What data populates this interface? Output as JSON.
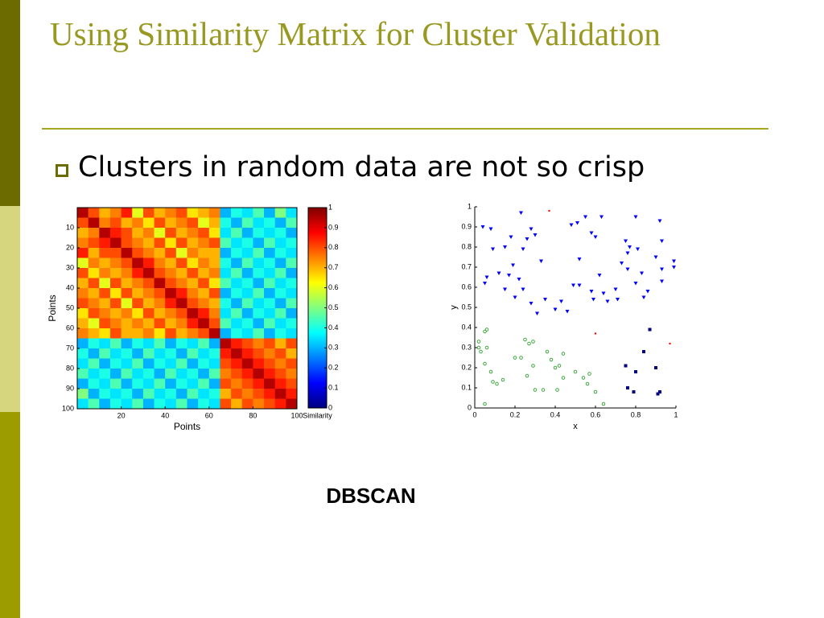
{
  "slide": {
    "title": "Using Similarity Matrix for Cluster Validation",
    "bullet": "Clusters in random data are not so crisp",
    "caption": "DBSCAN"
  },
  "chart_data": [
    {
      "type": "heatmap",
      "xlabel": "Points",
      "ylabel": "Points",
      "colormap": "jet",
      "xlim": [
        0,
        100
      ],
      "ylim": [
        100,
        0
      ],
      "xticks": [
        20,
        40,
        60,
        80,
        100
      ],
      "yticks": [
        10,
        20,
        30,
        40,
        50,
        60,
        70,
        80,
        90,
        100
      ],
      "colorbar": {
        "label": "Similarity",
        "lim": [
          0,
          1
        ],
        "ticks": [
          0,
          0.1,
          0.2,
          0.3,
          0.4,
          0.5,
          0.6,
          0.7,
          0.8,
          0.9,
          1
        ]
      },
      "z": [
        [
          0.95,
          0.8,
          0.7,
          0.75,
          0.85,
          0.6,
          0.8,
          0.7,
          0.75,
          0.8,
          0.65,
          0.7,
          0.75,
          0.3,
          0.4,
          0.35,
          0.45,
          0.3,
          0.5,
          0.35
        ],
        [
          0.8,
          0.95,
          0.75,
          0.8,
          0.7,
          0.75,
          0.65,
          0.8,
          0.7,
          0.75,
          0.8,
          0.6,
          0.7,
          0.4,
          0.3,
          0.45,
          0.35,
          0.4,
          0.3,
          0.45
        ],
        [
          0.7,
          0.75,
          0.95,
          0.85,
          0.8,
          0.7,
          0.75,
          0.6,
          0.8,
          0.7,
          0.75,
          0.8,
          0.65,
          0.35,
          0.45,
          0.3,
          0.4,
          0.35,
          0.4,
          0.3
        ],
        [
          0.75,
          0.8,
          0.85,
          0.95,
          0.8,
          0.75,
          0.7,
          0.8,
          0.65,
          0.8,
          0.7,
          0.75,
          0.8,
          0.45,
          0.35,
          0.4,
          0.3,
          0.45,
          0.35,
          0.4
        ],
        [
          0.85,
          0.7,
          0.8,
          0.8,
          0.95,
          0.8,
          0.75,
          0.7,
          0.8,
          0.6,
          0.75,
          0.7,
          0.7,
          0.3,
          0.4,
          0.35,
          0.45,
          0.3,
          0.4,
          0.35
        ],
        [
          0.6,
          0.75,
          0.7,
          0.75,
          0.8,
          0.95,
          0.85,
          0.75,
          0.7,
          0.8,
          0.65,
          0.75,
          0.7,
          0.4,
          0.3,
          0.45,
          0.35,
          0.4,
          0.3,
          0.45
        ],
        [
          0.8,
          0.65,
          0.75,
          0.7,
          0.75,
          0.85,
          0.95,
          0.8,
          0.75,
          0.7,
          0.8,
          0.7,
          0.75,
          0.35,
          0.45,
          0.3,
          0.4,
          0.35,
          0.45,
          0.3
        ],
        [
          0.7,
          0.8,
          0.6,
          0.8,
          0.7,
          0.75,
          0.8,
          0.95,
          0.8,
          0.75,
          0.7,
          0.8,
          0.65,
          0.45,
          0.35,
          0.4,
          0.3,
          0.45,
          0.35,
          0.4
        ],
        [
          0.75,
          0.7,
          0.8,
          0.65,
          0.8,
          0.7,
          0.75,
          0.8,
          0.95,
          0.85,
          0.75,
          0.7,
          0.8,
          0.3,
          0.4,
          0.35,
          0.45,
          0.3,
          0.4,
          0.35
        ],
        [
          0.8,
          0.75,
          0.7,
          0.8,
          0.6,
          0.8,
          0.7,
          0.75,
          0.85,
          0.95,
          0.8,
          0.75,
          0.7,
          0.4,
          0.3,
          0.45,
          0.35,
          0.4,
          0.3,
          0.45
        ],
        [
          0.65,
          0.8,
          0.75,
          0.7,
          0.75,
          0.65,
          0.8,
          0.7,
          0.75,
          0.8,
          0.95,
          0.85,
          0.75,
          0.35,
          0.45,
          0.3,
          0.4,
          0.35,
          0.45,
          0.3
        ],
        [
          0.7,
          0.6,
          0.8,
          0.75,
          0.7,
          0.75,
          0.7,
          0.8,
          0.7,
          0.75,
          0.85,
          0.95,
          0.8,
          0.45,
          0.35,
          0.4,
          0.3,
          0.45,
          0.35,
          0.4
        ],
        [
          0.75,
          0.7,
          0.65,
          0.8,
          0.7,
          0.7,
          0.75,
          0.65,
          0.8,
          0.7,
          0.75,
          0.8,
          0.95,
          0.3,
          0.4,
          0.35,
          0.45,
          0.3,
          0.4,
          0.35
        ],
        [
          0.3,
          0.4,
          0.35,
          0.45,
          0.3,
          0.4,
          0.35,
          0.45,
          0.3,
          0.4,
          0.35,
          0.45,
          0.3,
          0.95,
          0.85,
          0.8,
          0.75,
          0.8,
          0.7,
          0.8
        ],
        [
          0.4,
          0.3,
          0.45,
          0.35,
          0.4,
          0.3,
          0.45,
          0.35,
          0.4,
          0.3,
          0.45,
          0.35,
          0.4,
          0.85,
          0.95,
          0.85,
          0.8,
          0.75,
          0.8,
          0.7
        ],
        [
          0.35,
          0.45,
          0.3,
          0.4,
          0.35,
          0.45,
          0.3,
          0.4,
          0.35,
          0.45,
          0.3,
          0.4,
          0.35,
          0.8,
          0.85,
          0.95,
          0.85,
          0.8,
          0.75,
          0.8
        ],
        [
          0.45,
          0.35,
          0.4,
          0.3,
          0.45,
          0.35,
          0.4,
          0.3,
          0.45,
          0.35,
          0.4,
          0.3,
          0.45,
          0.75,
          0.8,
          0.85,
          0.95,
          0.85,
          0.8,
          0.75
        ],
        [
          0.3,
          0.4,
          0.35,
          0.45,
          0.3,
          0.4,
          0.35,
          0.45,
          0.3,
          0.4,
          0.35,
          0.45,
          0.3,
          0.8,
          0.75,
          0.8,
          0.85,
          0.95,
          0.85,
          0.8
        ],
        [
          0.5,
          0.3,
          0.4,
          0.35,
          0.4,
          0.3,
          0.45,
          0.35,
          0.4,
          0.3,
          0.45,
          0.35,
          0.4,
          0.7,
          0.8,
          0.75,
          0.8,
          0.85,
          0.95,
          0.85
        ],
        [
          0.35,
          0.45,
          0.3,
          0.4,
          0.35,
          0.45,
          0.3,
          0.4,
          0.35,
          0.45,
          0.3,
          0.4,
          0.35,
          0.8,
          0.7,
          0.8,
          0.75,
          0.8,
          0.85,
          0.95
        ]
      ]
    },
    {
      "type": "scatter",
      "xlabel": "x",
      "ylabel": "y",
      "xlim": [
        0,
        1
      ],
      "ylim": [
        0,
        1
      ],
      "xticks": [
        0,
        0.2,
        0.4,
        0.6,
        0.8,
        1
      ],
      "yticks": [
        0,
        0.1,
        0.2,
        0.3,
        0.4,
        0.5,
        0.6,
        0.7,
        0.8,
        0.9,
        1
      ],
      "series": [
        {
          "color": "#0000ff",
          "marker": "triangle-down",
          "x": [
            0.04,
            0.08,
            0.09,
            0.15,
            0.18,
            0.23,
            0.24,
            0.26,
            0.28,
            0.3,
            0.33,
            0.48,
            0.51,
            0.52,
            0.55,
            0.58,
            0.6,
            0.63,
            0.73,
            0.75,
            0.76,
            0.77,
            0.8,
            0.81,
            0.83,
            0.86,
            0.92,
            0.93,
            0.93,
            0.99,
            0.99,
            0.06,
            0.05,
            0.12,
            0.15,
            0.17,
            0.19,
            0.22,
            0.2,
            0.24,
            0.28,
            0.31,
            0.35,
            0.4,
            0.43,
            0.46,
            0.49,
            0.52,
            0.58,
            0.59,
            0.62,
            0.64,
            0.66,
            0.7,
            0.71,
            0.76,
            0.8,
            0.84,
            0.93,
            0.9
          ],
          "y": [
            0.9,
            0.89,
            0.79,
            0.8,
            0.85,
            0.97,
            0.79,
            0.84,
            0.89,
            0.86,
            0.73,
            0.91,
            0.92,
            0.74,
            0.95,
            0.87,
            0.85,
            0.95,
            0.72,
            0.83,
            0.77,
            0.8,
            0.95,
            0.79,
            0.67,
            0.58,
            0.93,
            0.83,
            0.69,
            0.73,
            0.7,
            0.65,
            0.62,
            0.67,
            0.59,
            0.66,
            0.71,
            0.64,
            0.55,
            0.59,
            0.52,
            0.47,
            0.54,
            0.49,
            0.53,
            0.48,
            0.61,
            0.61,
            0.58,
            0.54,
            0.66,
            0.57,
            0.53,
            0.59,
            0.54,
            0.69,
            0.62,
            0.55,
            0.63,
            0.75
          ]
        },
        {
          "color": "#2ca02c",
          "marker": "circle",
          "x": [
            0.02,
            0.02,
            0.05,
            0.06,
            0.03,
            0.06,
            0.05,
            0.08,
            0.09,
            0.11,
            0.14,
            0.2,
            0.23,
            0.25,
            0.27,
            0.29,
            0.26,
            0.29,
            0.3,
            0.34,
            0.36,
            0.38,
            0.4,
            0.42,
            0.41,
            0.44,
            0.44,
            0.5,
            0.54,
            0.57,
            0.56,
            0.6,
            0.64,
            0.05
          ],
          "y": [
            0.3,
            0.33,
            0.38,
            0.39,
            0.28,
            0.3,
            0.22,
            0.18,
            0.13,
            0.12,
            0.14,
            0.25,
            0.25,
            0.34,
            0.32,
            0.33,
            0.16,
            0.21,
            0.09,
            0.09,
            0.28,
            0.24,
            0.2,
            0.21,
            0.09,
            0.15,
            0.27,
            0.18,
            0.15,
            0.17,
            0.12,
            0.08,
            0.02,
            0.02
          ]
        },
        {
          "color": "#000080",
          "marker": "square",
          "x": [
            0.87,
            0.84,
            0.75,
            0.8,
            0.9,
            0.76,
            0.79,
            0.91,
            0.92
          ],
          "y": [
            0.39,
            0.28,
            0.21,
            0.18,
            0.2,
            0.1,
            0.08,
            0.07,
            0.08
          ]
        },
        {
          "color": "#ff0000",
          "marker": "dot",
          "x": [
            0.37,
            0.6,
            0.97
          ],
          "y": [
            0.98,
            0.37,
            0.32
          ]
        }
      ]
    }
  ]
}
